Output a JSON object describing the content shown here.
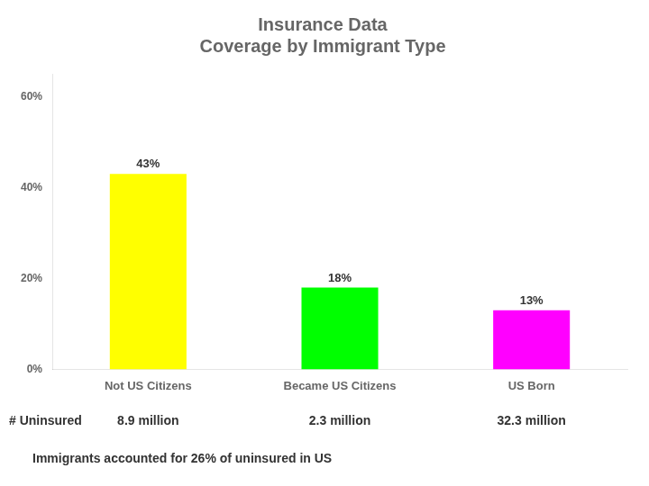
{
  "chart_data": {
    "type": "bar",
    "title": "Insurance Data\nCoverage by Immigrant Type",
    "categories": [
      "Not US Citizens",
      "Became US Citizens",
      "US Born"
    ],
    "values": [
      43,
      18,
      13
    ],
    "value_labels": [
      "43%",
      "18%",
      "13%"
    ],
    "data_labels": true,
    "colors": [
      "#ffff00",
      "#00ff00",
      "#ff00ff"
    ],
    "ylim": [
      0,
      65
    ],
    "yticks": [
      {
        "value": 0,
        "label": "0%"
      },
      {
        "value": 20,
        "label": "20%"
      },
      {
        "value": 40,
        "label": "40%"
      },
      {
        "value": 60,
        "label": "60%"
      }
    ],
    "grid": false,
    "annotations": [
      "# Uninsured",
      "8.9 million",
      "2.3 million",
      "32.3 million",
      "Immigrants accounted for 26% of uninsured in US"
    ]
  }
}
